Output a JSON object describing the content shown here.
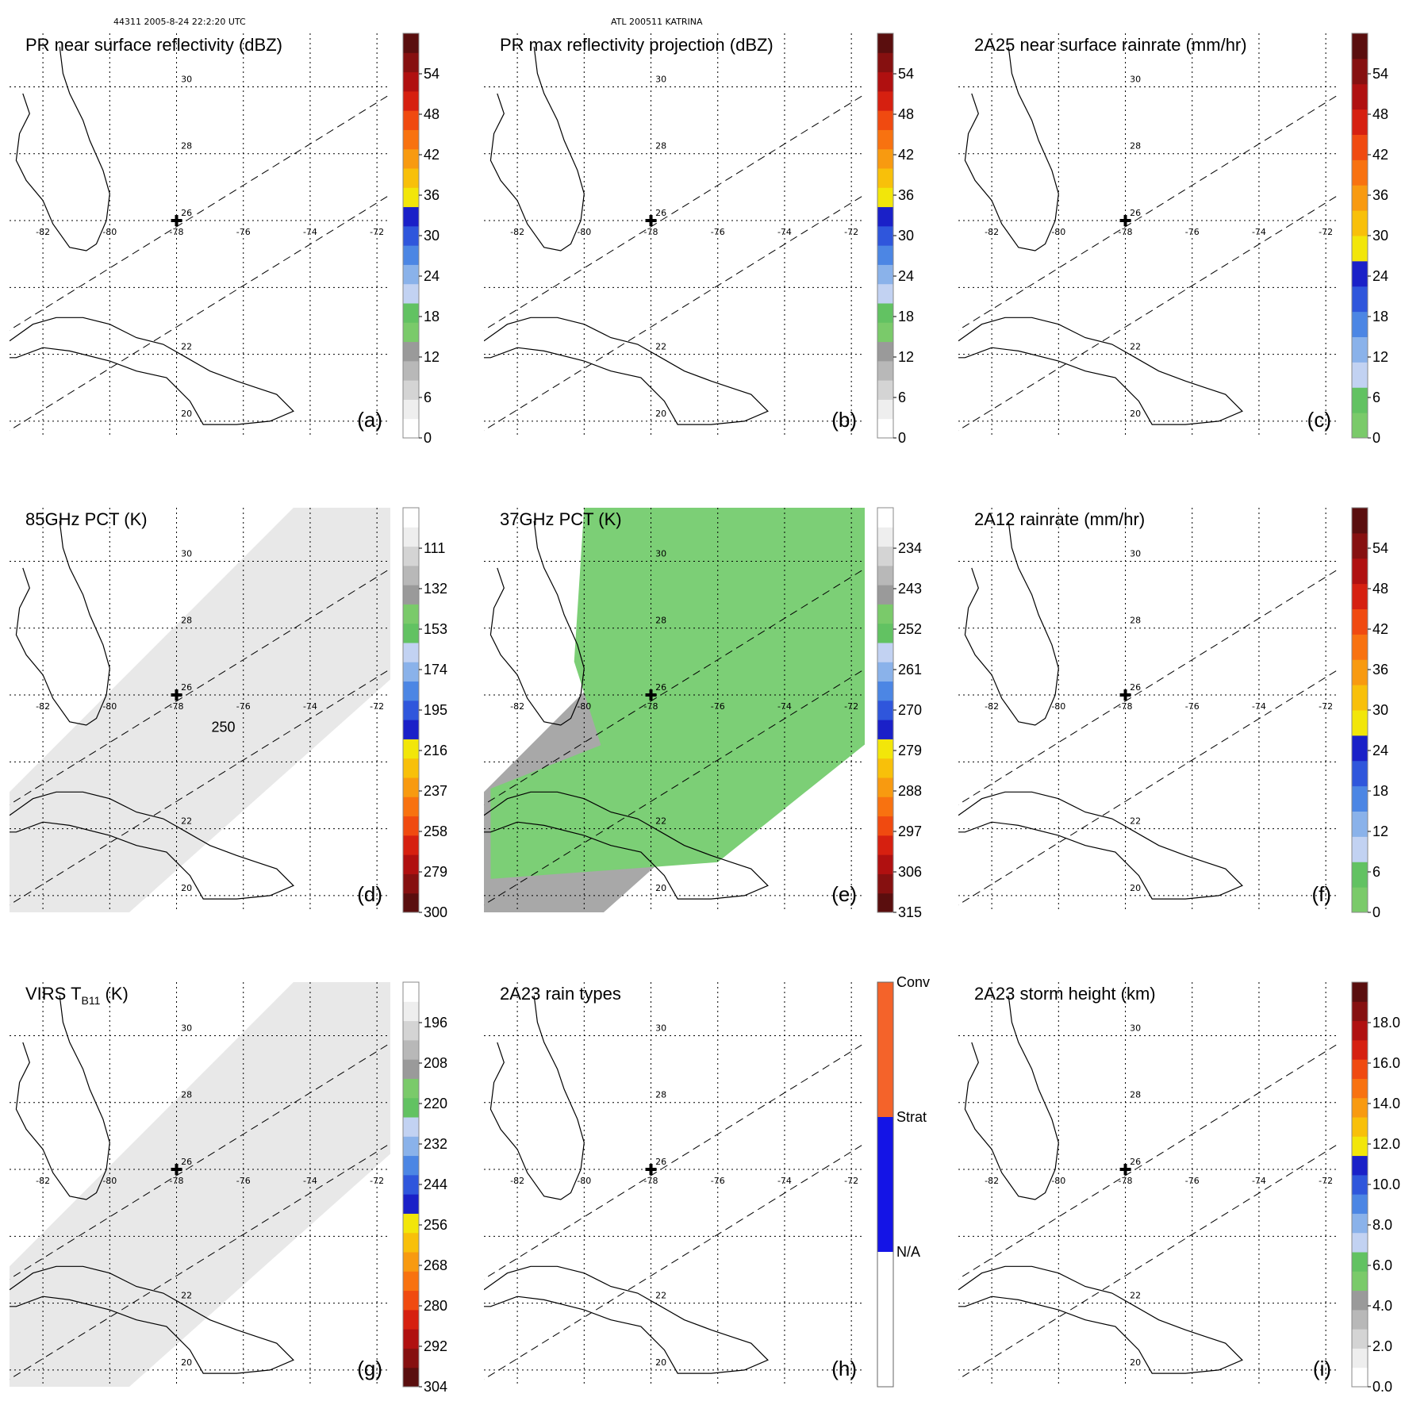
{
  "header": {
    "left": "44311 2005-8-24 22:2:20 UTC",
    "center": "ATL 200511 KATRINA"
  },
  "colors": {
    "colorbar_a": [
      "#ffffff",
      "#eeeeee",
      "#d4d4d4",
      "#b8b8b8",
      "#9a9a9a",
      "#7aca6a",
      "#62c262",
      "#c2d2f2",
      "#8ab2ea",
      "#4c86e4",
      "#2f56dc",
      "#1a20c8",
      "#f2e60a",
      "#f8c00a",
      "#f89a10",
      "#f87210",
      "#f04a10",
      "#d62010",
      "#b01010",
      "#861010",
      "#5a0e0e"
    ],
    "colorbar_c": [
      "#7aca6a",
      "#62c262",
      "#c2d2f2",
      "#8ab2ea",
      "#4c86e4",
      "#2f56dc",
      "#1a20c8",
      "#f2e60a",
      "#f8c00a",
      "#f89a10",
      "#f87210",
      "#f04a10",
      "#d62010",
      "#b01010",
      "#861010",
      "#5a0e0e"
    ],
    "colorbar_pct": [
      "#5a0e0e",
      "#861010",
      "#b01010",
      "#d62010",
      "#f04a10",
      "#f87210",
      "#f89a10",
      "#f8c00a",
      "#f2e60a",
      "#1a20c8",
      "#2f56dc",
      "#4c86e4",
      "#8ab2ea",
      "#c2d2f2",
      "#62c262",
      "#7aca6a",
      "#9a9a9a",
      "#b8b8b8",
      "#d4d4d4",
      "#eeeeee",
      "#ffffff"
    ],
    "colorbar_h": [
      "#ffffff",
      "#f4632a",
      "#f4632a",
      "#1414e6",
      "#1414e6",
      "#ffffff"
    ],
    "coast": "#000000",
    "grid": "#000000",
    "swath_bg_gray": "#e8e8e8",
    "swath_bg_green": "#7ccf76",
    "swath_bg_gray_dark": "#a8a8a8"
  },
  "lat_labels": [
    "30",
    "28",
    "26",
    "22",
    "20"
  ],
  "lon_labels": [
    "-82",
    "-80",
    "-78",
    "-76",
    "-74",
    "-72"
  ],
  "chart_data": [
    {
      "id": "a",
      "type": "heatmap",
      "title": "PR near surface reflectivity (dBZ)",
      "panel_label": "(a)",
      "background": "none",
      "colorbar": {
        "ticks": [
          "0",
          "6",
          "12",
          "18",
          "24",
          "30",
          "36",
          "42",
          "48",
          "54"
        ],
        "palette": "colorbar_a",
        "range": [
          0,
          60
        ]
      },
      "center_marker": {
        "lon": -78,
        "lat": 26
      }
    },
    {
      "id": "b",
      "type": "heatmap",
      "title": "PR max reflectivity projection (dBZ)",
      "panel_label": "(b)",
      "background": "none",
      "colorbar": {
        "ticks": [
          "0",
          "6",
          "12",
          "18",
          "24",
          "30",
          "36",
          "42",
          "48",
          "54"
        ],
        "palette": "colorbar_a",
        "range": [
          0,
          60
        ]
      },
      "center_marker": {
        "lon": -78,
        "lat": 26
      }
    },
    {
      "id": "c",
      "type": "heatmap",
      "title": "2A25 near surface rainrate (mm/hr)",
      "panel_label": "(c)",
      "background": "none",
      "colorbar": {
        "ticks": [
          "0",
          "6",
          "12",
          "18",
          "24",
          "30",
          "36",
          "42",
          "48",
          "54"
        ],
        "palette": "colorbar_c",
        "range": [
          0,
          60
        ]
      },
      "center_marker": {
        "lon": -78,
        "lat": 26
      }
    },
    {
      "id": "d",
      "type": "heatmap",
      "title": "85GHz PCT (K)",
      "panel_label": "(d)",
      "background": "gray",
      "annotation": "250",
      "colorbar": {
        "ticks": [
          "300",
          "279",
          "258",
          "237",
          "216",
          "195",
          "174",
          "153",
          "132",
          "111"
        ],
        "palette": "colorbar_pct",
        "range": [
          300,
          90
        ]
      },
      "center_marker": {
        "lon": -78,
        "lat": 26
      }
    },
    {
      "id": "e",
      "type": "heatmap",
      "title": "37GHz PCT (K)",
      "panel_label": "(e)",
      "background": "green",
      "colorbar": {
        "ticks": [
          "315",
          "306",
          "297",
          "288",
          "279",
          "270",
          "261",
          "252",
          "243",
          "234"
        ],
        "palette": "colorbar_pct",
        "range": [
          315,
          225
        ]
      },
      "center_marker": {
        "lon": -78,
        "lat": 26
      }
    },
    {
      "id": "f",
      "type": "heatmap",
      "title": "2A12 rainrate (mm/hr)",
      "panel_label": "(f)",
      "background": "none",
      "colorbar": {
        "ticks": [
          "0",
          "6",
          "12",
          "18",
          "24",
          "30",
          "36",
          "42",
          "48",
          "54"
        ],
        "palette": "colorbar_c",
        "range": [
          0,
          60
        ]
      },
      "center_marker": {
        "lon": -78,
        "lat": 26
      }
    },
    {
      "id": "g",
      "type": "heatmap",
      "title": "VIRS T",
      "title_sub": "B11",
      "title_suffix": " (K)",
      "panel_label": "(g)",
      "background": "gray",
      "colorbar": {
        "ticks": [
          "304",
          "292",
          "280",
          "268",
          "256",
          "244",
          "232",
          "220",
          "208",
          "196"
        ],
        "palette": "colorbar_pct",
        "range": [
          304,
          184
        ]
      },
      "center_marker": {
        "lon": -78,
        "lat": 26
      }
    },
    {
      "id": "h",
      "type": "heatmap",
      "title": "2A23 rain types",
      "panel_label": "(h)",
      "background": "none",
      "colorbar": {
        "ticks": [
          "N/A",
          "Strat",
          "Conv"
        ],
        "palette": "colorbar_h",
        "categorical": true
      },
      "center_marker": {
        "lon": -78,
        "lat": 26
      }
    },
    {
      "id": "i",
      "type": "heatmap",
      "title": "2A23 storm height (km)",
      "panel_label": "(i)",
      "background": "none",
      "colorbar": {
        "ticks": [
          "0.0",
          "2.0",
          "4.0",
          "6.0",
          "8.0",
          "10.0",
          "12.0",
          "14.0",
          "16.0",
          "18.0"
        ],
        "palette": "colorbar_a",
        "range": [
          0,
          20
        ]
      },
      "center_marker": {
        "lon": -78,
        "lat": 26
      }
    }
  ]
}
